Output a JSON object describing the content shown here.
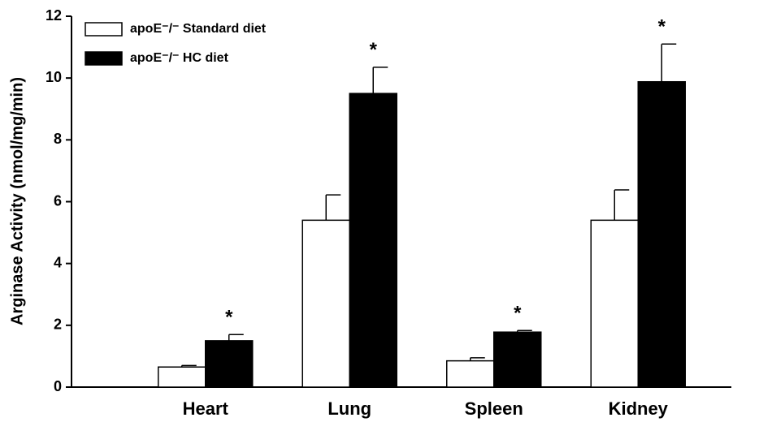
{
  "chart_data": {
    "type": "bar",
    "y_label": "Arginase Activity (nmol/mg/min)",
    "categories": [
      "Heart",
      "Lung",
      "Spleen",
      "Kidney"
    ],
    "series": [
      {
        "name": "apoE⁻/⁻ Standard diet",
        "color": "#ffffff",
        "values": [
          0.65,
          5.4,
          0.85,
          5.4
        ],
        "errors": [
          0.05,
          0.82,
          0.1,
          0.98
        ]
      },
      {
        "name": "apoE⁻/⁻ HC diet",
        "color": "#000000",
        "values": [
          1.5,
          9.5,
          1.78,
          9.88
        ],
        "errors": [
          0.2,
          0.85,
          0.05,
          1.22
        ],
        "annotations": [
          "*",
          "*",
          "*",
          "*"
        ]
      }
    ],
    "ylim": [
      0,
      12
    ],
    "yticks": [
      0,
      2,
      4,
      6,
      8,
      10,
      12
    ],
    "grid": false
  }
}
